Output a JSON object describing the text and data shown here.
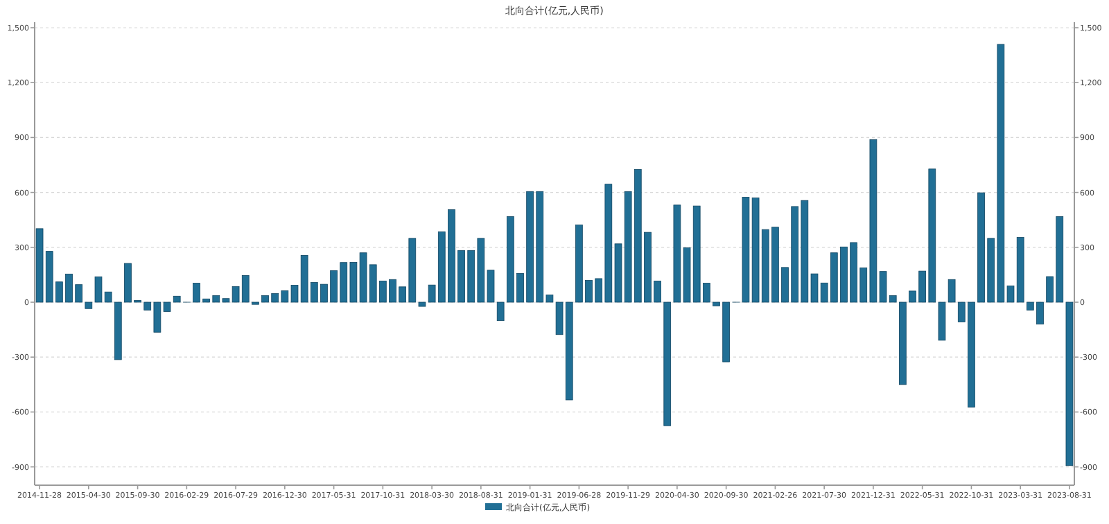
{
  "chart_data": {
    "type": "bar",
    "title": "北向合计(亿元,人民币)",
    "categories": [
      "2014-11-28",
      null,
      null,
      null,
      null,
      "2015-04-30",
      null,
      null,
      null,
      null,
      "2015-09-30",
      null,
      null,
      null,
      null,
      "2016-02-29",
      null,
      null,
      null,
      null,
      "2016-07-29",
      null,
      null,
      null,
      null,
      "2016-12-30",
      null,
      null,
      null,
      null,
      "2017-05-31",
      null,
      null,
      null,
      null,
      "2017-10-31",
      null,
      null,
      null,
      null,
      "2018-03-30",
      null,
      null,
      null,
      null,
      "2018-08-31",
      null,
      null,
      null,
      null,
      "2019-01-31",
      null,
      null,
      null,
      null,
      "2019-06-28",
      null,
      null,
      null,
      null,
      "2019-11-29",
      null,
      null,
      null,
      null,
      "2020-04-30",
      null,
      null,
      null,
      null,
      "2020-09-30",
      null,
      null,
      null,
      null,
      "2021-02-26",
      null,
      null,
      null,
      null,
      "2021-07-30",
      null,
      null,
      null,
      null,
      "2021-12-31",
      null,
      null,
      null,
      null,
      "2022-05-31",
      null,
      null,
      null,
      null,
      "2022-10-31",
      null,
      null,
      null,
      null,
      "2023-03-31",
      null,
      null,
      null,
      null,
      "2023-08-31"
    ],
    "series": [
      {
        "name": "北向合计(亿元,人民币)",
        "color": "#216f95",
        "values": [
          402,
          278,
          111,
          154,
          96,
          -35,
          139,
          56,
          -314,
          212,
          10,
          -43,
          -164,
          -51,
          33,
          0,
          104,
          18,
          36,
          20,
          86,
          146,
          -12,
          36,
          47,
          63,
          93,
          256,
          108,
          98,
          173,
          217,
          218,
          270,
          205,
          116,
          124,
          84,
          349,
          -23,
          94,
          385,
          506,
          283,
          283,
          349,
          175,
          -101,
          468,
          157,
          605,
          605,
          40,
          -177,
          -534,
          422,
          119,
          129,
          645,
          319,
          605,
          726,
          382,
          116,
          -675,
          531,
          298,
          526,
          104,
          -20,
          -326,
          0,
          574,
          570,
          397,
          410,
          190,
          523,
          556,
          155,
          105,
          270,
          302,
          326,
          188,
          888,
          168,
          36,
          -450,
          61,
          170,
          728,
          -208,
          124,
          -108,
          -573,
          598,
          349,
          1409,
          89,
          354,
          -43,
          -120,
          140,
          468,
          -893
        ]
      }
    ],
    "ylim": [
      -1000,
      1500
    ],
    "yticks": [
      -900,
      -600,
      -300,
      0,
      300,
      600,
      900,
      {
        "value": 1200,
        "label": "1,200"
      },
      {
        "value": 1500,
        "label": "1,500"
      }
    ],
    "y2lim": [
      -1000,
      1500
    ],
    "y2ticks": [
      -900,
      -600,
      -300,
      0,
      300,
      600,
      900,
      {
        "value": 1200,
        "label": "1,200"
      },
      {
        "value": 1500,
        "label": "1,500"
      }
    ],
    "grid": "y",
    "legend": "bottom"
  }
}
